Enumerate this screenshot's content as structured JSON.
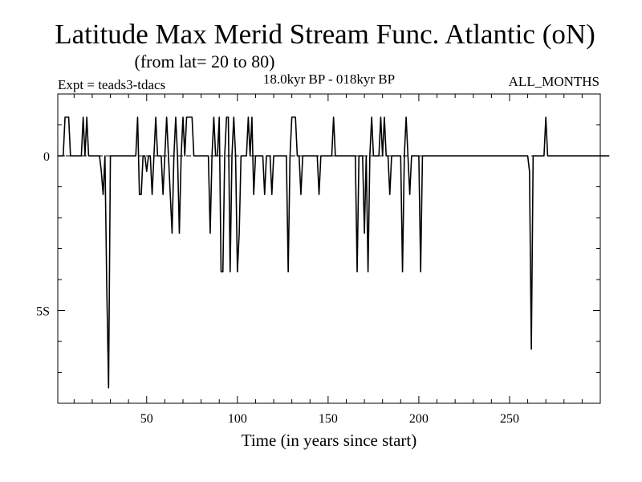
{
  "chart_data": {
    "type": "line",
    "title": "Latitude Max Merid Stream Func. Atlantic (oN)",
    "subtitle": "(from lat= 20 to 80)",
    "expt_label": "Expt = teads3-tdacs",
    "period_label": "18.0kyr BP - 018kyr BP",
    "months_label": "ALL_MONTHS",
    "xlabel": "Time (in years since start)",
    "ylabel": "",
    "xlim": [
      1,
      300
    ],
    "ylim": [
      -8,
      2
    ],
    "x_ticks": [
      {
        "value": 50,
        "label": "50"
      },
      {
        "value": 100,
        "label": "100"
      },
      {
        "value": 150,
        "label": "150"
      },
      {
        "value": 200,
        "label": "200"
      },
      {
        "value": 250,
        "label": "250"
      }
    ],
    "y_ticks": [
      {
        "value": 0,
        "label": "0"
      },
      {
        "value": -5,
        "label": "5S"
      }
    ],
    "reference_line": {
      "y": 0,
      "style": "dashed"
    },
    "series": [
      {
        "name": "Latitude of max meridional stream function",
        "values": [
          0,
          0,
          0,
          0,
          1.25,
          1.25,
          1.25,
          0,
          0,
          0,
          0,
          0,
          0,
          0,
          1.25,
          0,
          1.25,
          0,
          0,
          0,
          0,
          0,
          0,
          0,
          -0.5,
          -1.25,
          0,
          -4.25,
          -7.5,
          0,
          0,
          0,
          0,
          0,
          0,
          0,
          0,
          0,
          0,
          0,
          0,
          0,
          0,
          0,
          1.25,
          -1.25,
          -1.25,
          0,
          0,
          -0.5,
          0,
          0,
          -1.25,
          0,
          1.25,
          0,
          0,
          0,
          -1.25,
          0,
          1.25,
          0,
          -1.25,
          -2.5,
          0,
          1.25,
          0,
          -2.5,
          0,
          1.25,
          0,
          1.25,
          1.25,
          1.25,
          1.25,
          0,
          0,
          0,
          0,
          0,
          0,
          0,
          0,
          0,
          -2.5,
          0,
          1.25,
          0,
          0,
          1.25,
          -3.75,
          -3.75,
          0,
          1.25,
          1.25,
          -3.75,
          0,
          1.25,
          0,
          -3.75,
          -2.5,
          0,
          0,
          0,
          0,
          1.25,
          0,
          1.25,
          -1.25,
          0,
          0,
          0,
          0,
          0,
          -1.25,
          0,
          0,
          0,
          -1.25,
          0,
          0,
          0,
          0,
          0,
          0,
          0,
          0,
          -3.75,
          0,
          1.25,
          1.25,
          1.25,
          0,
          0,
          -1.25,
          0,
          0,
          0,
          0,
          0,
          0,
          0,
          0,
          0,
          -1.25,
          0,
          0,
          0,
          0,
          0,
          0,
          0,
          1.25,
          0,
          0,
          0,
          0,
          0,
          0,
          0,
          0,
          0,
          0,
          0,
          0,
          -3.75,
          0,
          0,
          0,
          -2.5,
          0,
          -3.75,
          0,
          1.25,
          0,
          0,
          0,
          0,
          1.25,
          0,
          1.25,
          0,
          0,
          -1.25,
          0,
          0,
          0,
          0,
          0,
          0,
          -3.75,
          0,
          1.25,
          0,
          -1.25,
          0,
          0,
          0,
          0,
          0,
          -3.75,
          0,
          0,
          0,
          0,
          0,
          0,
          0,
          0,
          0,
          0,
          0,
          0,
          0,
          0,
          0,
          0,
          0,
          0,
          0,
          0,
          0,
          0,
          0,
          0,
          0,
          0,
          0,
          0,
          0,
          0,
          0,
          0,
          0,
          0,
          0,
          0,
          0,
          0,
          0,
          0,
          0,
          0,
          0,
          0,
          0,
          0,
          0,
          0,
          0,
          0,
          0,
          0,
          0,
          0,
          0,
          0,
          0,
          0,
          0,
          -0.5,
          -6.25,
          0,
          0,
          0,
          0,
          0,
          0,
          0,
          1.25,
          0,
          0,
          0,
          0,
          0,
          0,
          0,
          0,
          0,
          0,
          0,
          0,
          0,
          0,
          0,
          0,
          0,
          0,
          0,
          0,
          0,
          0,
          0,
          0,
          0,
          0,
          0,
          0,
          0,
          0,
          0,
          0,
          0,
          0,
          0
        ]
      }
    ]
  }
}
